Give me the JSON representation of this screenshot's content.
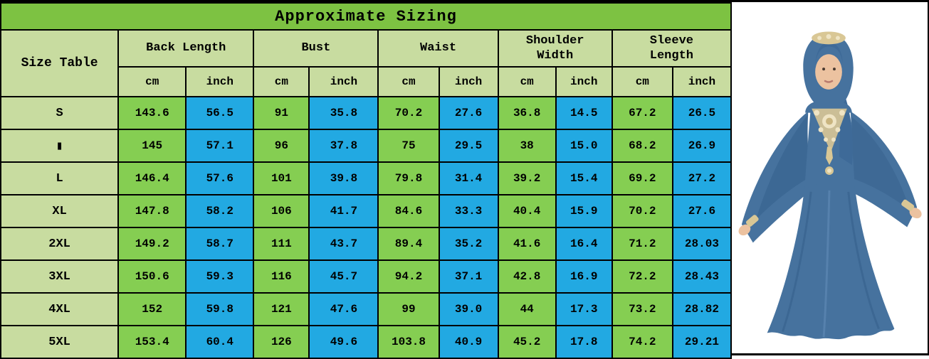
{
  "title": "Approximate Sizing",
  "table": {
    "corner_label": "Size Table",
    "groups": [
      {
        "label": "Back Length"
      },
      {
        "label": "Bust"
      },
      {
        "label": "Waist"
      },
      {
        "label": "Shoulder\nWidth"
      },
      {
        "label": "Sleeve\nLength"
      }
    ],
    "unit_labels": {
      "cm": "cm",
      "inch": "inch"
    },
    "rows": [
      {
        "size": "S",
        "values": [
          "143.6",
          "56.5",
          "91",
          "35.8",
          "70.2",
          "27.6",
          "36.8",
          "14.5",
          "67.2",
          "26.5"
        ]
      },
      {
        "size": "▮",
        "values": [
          "145",
          "57.1",
          "96",
          "37.8",
          "75",
          "29.5",
          "38",
          "15.0",
          "68.2",
          "26.9"
        ]
      },
      {
        "size": "L",
        "values": [
          "146.4",
          "57.6",
          "101",
          "39.8",
          "79.8",
          "31.4",
          "39.2",
          "15.4",
          "69.2",
          "27.2"
        ]
      },
      {
        "size": "XL",
        "values": [
          "147.8",
          "58.2",
          "106",
          "41.7",
          "84.6",
          "33.3",
          "40.4",
          "15.9",
          "70.2",
          "27.6"
        ]
      },
      {
        "size": "2XL",
        "values": [
          "149.2",
          "58.7",
          "111",
          "43.7",
          "89.4",
          "35.2",
          "41.6",
          "16.4",
          "71.2",
          "28.03"
        ]
      },
      {
        "size": "3XL",
        "values": [
          "150.6",
          "59.3",
          "116",
          "45.7",
          "94.2",
          "37.1",
          "42.8",
          "16.9",
          "72.2",
          "28.43"
        ]
      },
      {
        "size": "4XL",
        "values": [
          "152",
          "59.8",
          "121",
          "47.6",
          "99",
          "39.0",
          "44",
          "17.3",
          "73.2",
          "28.82"
        ]
      },
      {
        "size": "5XL",
        "values": [
          "153.4",
          "60.4",
          "126",
          "49.6",
          "103.8",
          "40.9",
          "45.2",
          "17.8",
          "74.2",
          "29.21"
        ]
      }
    ]
  },
  "photo": {
    "description": "model wearing blue hijab abaya with gold chest embroidery, batwing sleeves spread"
  },
  "colors": {
    "title_green": "#7dc242",
    "sage": "#c8dca0",
    "cell_green": "#85ce52",
    "cell_blue": "#22a9e2",
    "dress_blue": "#46729e",
    "dress_blue_dark": "#35608c",
    "embroidery_gold": "#d9c795",
    "skin": "#ecc2a0"
  }
}
